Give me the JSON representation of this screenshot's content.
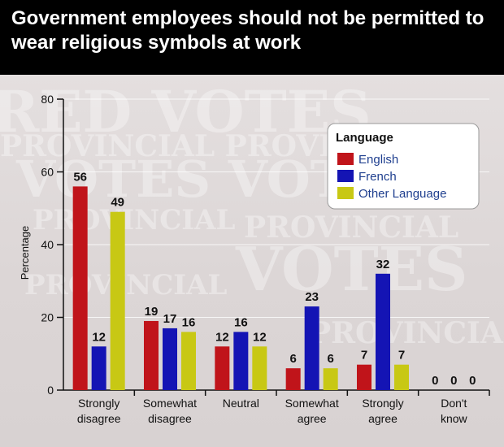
{
  "title": "Government employees should not be permitted to wear religious symbols at work",
  "colors": {
    "title_bar": "#000000",
    "title_text": "#ffffff",
    "English": "#c0141a",
    "French": "#1414b4",
    "Other Language": "#c8c814"
  },
  "chart_data": {
    "type": "bar",
    "title": "Government employees should not be permitted to wear religious symbols at work",
    "ylabel": "Percentage",
    "xlabel": "",
    "ylim": [
      0,
      80
    ],
    "yticks": [
      0,
      20,
      40,
      60,
      80
    ],
    "grid": true,
    "legend_title": "Language",
    "legend_position": "top-right",
    "categories": [
      [
        "Strongly",
        "disagree"
      ],
      [
        "Somewhat",
        "disagree"
      ],
      [
        "Neutral"
      ],
      [
        "Somewhat",
        "agree"
      ],
      [
        "Strongly",
        "agree"
      ],
      [
        "Don't",
        "know"
      ]
    ],
    "series": [
      {
        "name": "English",
        "values": [
          56,
          19,
          12,
          6,
          7,
          0
        ]
      },
      {
        "name": "French",
        "values": [
          12,
          17,
          16,
          23,
          32,
          0
        ]
      },
      {
        "name": "Other Language",
        "values": [
          49,
          16,
          12,
          6,
          7,
          0
        ]
      }
    ]
  }
}
